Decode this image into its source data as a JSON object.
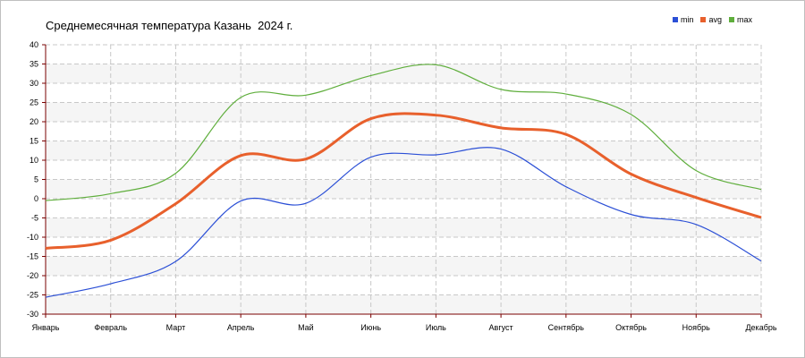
{
  "chart_data": {
    "type": "line",
    "title": "Среднемесячная температура Казань  2024 г.",
    "xlabel": "",
    "ylabel": "",
    "categories": [
      "Январь",
      "Февраль",
      "Март",
      "Апрель",
      "Май",
      "Июнь",
      "Июль",
      "Август",
      "Сентябрь",
      "Октябрь",
      "Ноябрь",
      "Декабрь"
    ],
    "ylim": [
      -30,
      40
    ],
    "yticks": [
      -30,
      -25,
      -20,
      -15,
      -10,
      -5,
      0,
      5,
      10,
      15,
      20,
      25,
      30,
      35,
      40
    ],
    "grid": true,
    "legend_position": "top-right",
    "series": [
      {
        "name": "min",
        "color": "#2b4fd6",
        "values": [
          -25.6,
          -22.1,
          -16.3,
          -0.6,
          -1.2,
          10.8,
          11.4,
          12.9,
          3.1,
          -4.1,
          -6.7,
          -16.2
        ]
      },
      {
        "name": "avg",
        "color": "#e8602c",
        "values": [
          -12.9,
          -10.8,
          -1.3,
          11.2,
          10.3,
          20.8,
          21.7,
          18.4,
          16.7,
          6.4,
          0.3,
          -4.9
        ]
      },
      {
        "name": "max",
        "color": "#5fae3c",
        "values": [
          -0.5,
          1.3,
          6.6,
          26.3,
          26.9,
          32.0,
          34.8,
          28.4,
          27.2,
          21.9,
          7.3,
          2.4
        ]
      }
    ]
  }
}
